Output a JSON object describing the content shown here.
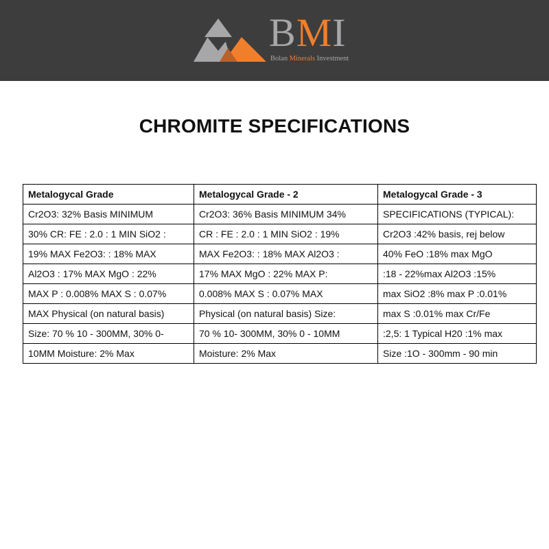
{
  "header": {
    "logo": {
      "letters": [
        "B",
        "M",
        "I"
      ],
      "tagline_parts": [
        "Bolan ",
        "Minerals",
        " Investment"
      ],
      "brand_color": "#f07f2c",
      "gray_color": "#a7a7a9",
      "background": "#3d3d3d"
    }
  },
  "title": "CHROMITE SPECIFICATIONS",
  "table": {
    "headers": [
      "Metalogycal Grade",
      "Metalogycal Grade - 2",
      "Metalogycal Grade - 3"
    ],
    "rows": [
      [
        "Cr2O3: 32% Basis MINIMUM",
        "Cr2O3: 36% Basis MINIMUM 34%",
        "SPECIFICATIONS (TYPICAL):"
      ],
      [
        "30% CR: FE : 2.0 : 1 MIN SiO2 :",
        "CR : FE : 2.0 : 1 MIN SiO2 : 19%",
        "Cr2O3 :42% basis, rej below"
      ],
      [
        "19% MAX Fe2O3: : 18% MAX",
        "MAX Fe2O3: : 18% MAX Al2O3 :",
        "40% FeO :18% max MgO"
      ],
      [
        "Al2O3 : 17% MAX MgO : 22%",
        "17% MAX MgO : 22% MAX P:",
        ":18 - 22%max Al2O3 :15%"
      ],
      [
        "MAX P : 0.008% MAX S : 0.07%",
        "0.008% MAX S : 0.07% MAX",
        "max SiO2 :8% max P :0.01%"
      ],
      [
        "MAX Physical (on natural basis)",
        "Physical (on natural basis) Size:",
        "max S :0.01% max Cr/Fe"
      ],
      [
        "Size: 70 % 10 - 300MM, 30% 0-",
        "70 % 10- 300MM, 30% 0 - 10MM",
        ":2,5: 1 Typical H20 :1% max"
      ],
      [
        "10MM Moisture: 2% Max",
        "Moisture: 2% Max",
        "Size :1O - 300mm - 90 min"
      ]
    ]
  }
}
